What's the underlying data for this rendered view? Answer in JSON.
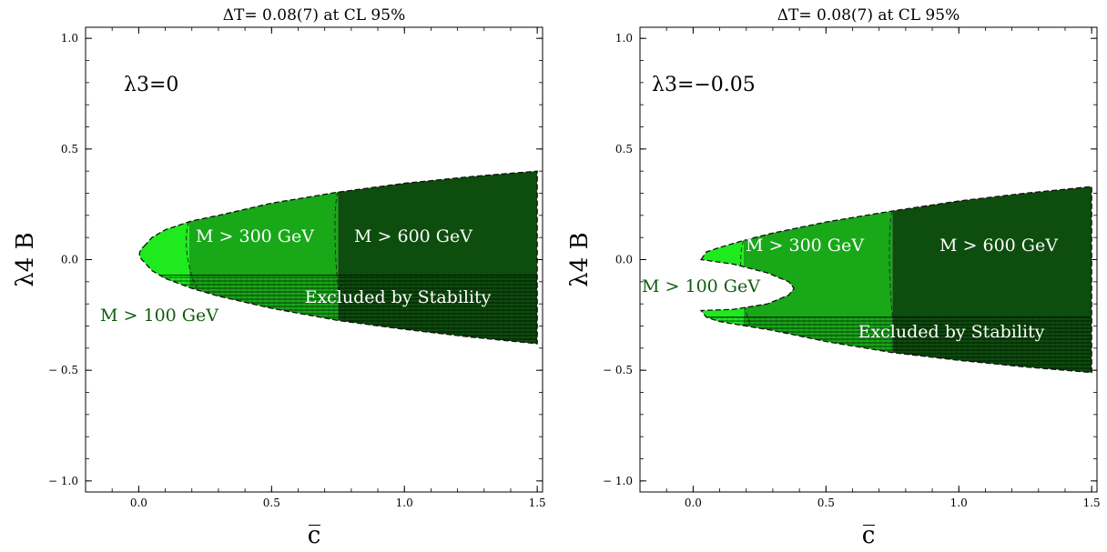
{
  "chart_data": [
    {
      "type": "area",
      "title": "ΔT= 0.08(7) at CL 95%",
      "annotation": "λ3=0",
      "xlabel": "c̅",
      "ylabel": "λ4 B",
      "xlim": [
        -0.2,
        1.52
      ],
      "ylim": [
        -1.05,
        1.05
      ],
      "x_ticks": [
        "0.0",
        "0.5",
        "1.0",
        "1.5"
      ],
      "y_ticks": [
        "1.0",
        "0.5",
        "0.0",
        "− 0.5",
        "− 1.0"
      ],
      "x_tick_values": [
        0,
        0.5,
        1.0,
        1.5
      ],
      "y_tick_values": [
        1.0,
        0.5,
        0.0,
        -0.5,
        -1.0
      ],
      "series": [
        {
          "name": "M > 100 GeV",
          "x_range": [
            0.02,
            0.19
          ],
          "color": "#1eea1e",
          "label_color": "#0e5c0e"
        },
        {
          "name": "M > 300 GeV",
          "x_range": [
            0.19,
            0.75
          ],
          "color": "#18a818",
          "label_color": "#ffffff"
        },
        {
          "name": "M > 600 GeV",
          "x_range": [
            0.75,
            1.5
          ],
          "color": "#0d4d0d",
          "label_color": "#ffffff"
        }
      ],
      "boundary": {
        "upper": [
          [
            0.02,
            0.06
          ],
          [
            0.05,
            0.1
          ],
          [
            0.1,
            0.135
          ],
          [
            0.2,
            0.175
          ],
          [
            0.3,
            0.2
          ],
          [
            0.5,
            0.255
          ],
          [
            0.75,
            0.305
          ],
          [
            1.0,
            0.345
          ],
          [
            1.25,
            0.375
          ],
          [
            1.5,
            0.4
          ]
        ],
        "lower": [
          [
            0.02,
            -0.01
          ],
          [
            0.05,
            -0.05
          ],
          [
            0.1,
            -0.085
          ],
          [
            0.2,
            -0.13
          ],
          [
            0.3,
            -0.165
          ],
          [
            0.5,
            -0.22
          ],
          [
            0.75,
            -0.275
          ],
          [
            1.0,
            -0.315
          ],
          [
            1.25,
            -0.35
          ],
          [
            1.5,
            -0.38
          ]
        ]
      },
      "excluded_region": {
        "name": "Excluded by Stability",
        "y_max": -0.07
      },
      "region_labels": [
        "M > 100 GeV",
        "M > 300 GeV",
        "M > 600 GeV",
        "Excluded by Stability"
      ]
    },
    {
      "type": "area",
      "title": "ΔT= 0.08(7) at CL 95%",
      "annotation": "λ3=−0.05",
      "xlabel": "c̅",
      "ylabel": "λ4 B",
      "xlim": [
        -0.2,
        1.52
      ],
      "ylim": [
        -1.05,
        1.05
      ],
      "x_ticks": [
        "0.0",
        "0.5",
        "1.0",
        "1.5"
      ],
      "y_ticks": [
        "1.0",
        "0.5",
        "0.0",
        "− 0.5",
        "− 1.0"
      ],
      "x_tick_values": [
        0,
        0.5,
        1.0,
        1.5
      ],
      "y_tick_values": [
        1.0,
        0.5,
        0.0,
        -0.5,
        -1.0
      ],
      "series": [
        {
          "name": "M > 100 GeV",
          "x_range": [
            0.03,
            0.19
          ],
          "color": "#1eea1e",
          "label_color": "#0e5c0e"
        },
        {
          "name": "M > 300 GeV",
          "x_range": [
            0.19,
            0.75
          ],
          "color": "#18a818",
          "label_color": "#ffffff"
        },
        {
          "name": "M > 600 GeV",
          "x_range": [
            0.75,
            1.5
          ],
          "color": "#0d4d0d",
          "label_color": "#ffffff"
        }
      ],
      "boundary": {
        "upper": [
          [
            0.03,
            0.0
          ],
          [
            0.05,
            0.035
          ],
          [
            0.1,
            0.055
          ],
          [
            0.2,
            0.09
          ],
          [
            0.3,
            0.12
          ],
          [
            0.5,
            0.17
          ],
          [
            0.75,
            0.22
          ],
          [
            1.0,
            0.265
          ],
          [
            1.25,
            0.3
          ],
          [
            1.5,
            0.33
          ]
        ],
        "lower": [
          [
            0.03,
            -0.23
          ],
          [
            0.05,
            -0.26
          ],
          [
            0.1,
            -0.28
          ],
          [
            0.2,
            -0.3
          ],
          [
            0.3,
            -0.32
          ],
          [
            0.5,
            -0.37
          ],
          [
            0.75,
            -0.42
          ],
          [
            1.0,
            -0.455
          ],
          [
            1.25,
            -0.485
          ],
          [
            1.5,
            -0.51
          ]
        ],
        "hole": [
          [
            0.03,
            0.0
          ],
          [
            0.15,
            -0.02
          ],
          [
            0.28,
            -0.06
          ],
          [
            0.36,
            -0.1
          ],
          [
            0.38,
            -0.13
          ],
          [
            0.36,
            -0.16
          ],
          [
            0.28,
            -0.2
          ],
          [
            0.15,
            -0.225
          ],
          [
            0.03,
            -0.23
          ]
        ]
      },
      "excluded_region": {
        "name": "Excluded by Stability",
        "y_max": -0.26
      },
      "region_labels": [
        "M > 100 GeV",
        "M > 300 GeV",
        "M > 600 GeV",
        "Excluded by Stability"
      ]
    }
  ]
}
